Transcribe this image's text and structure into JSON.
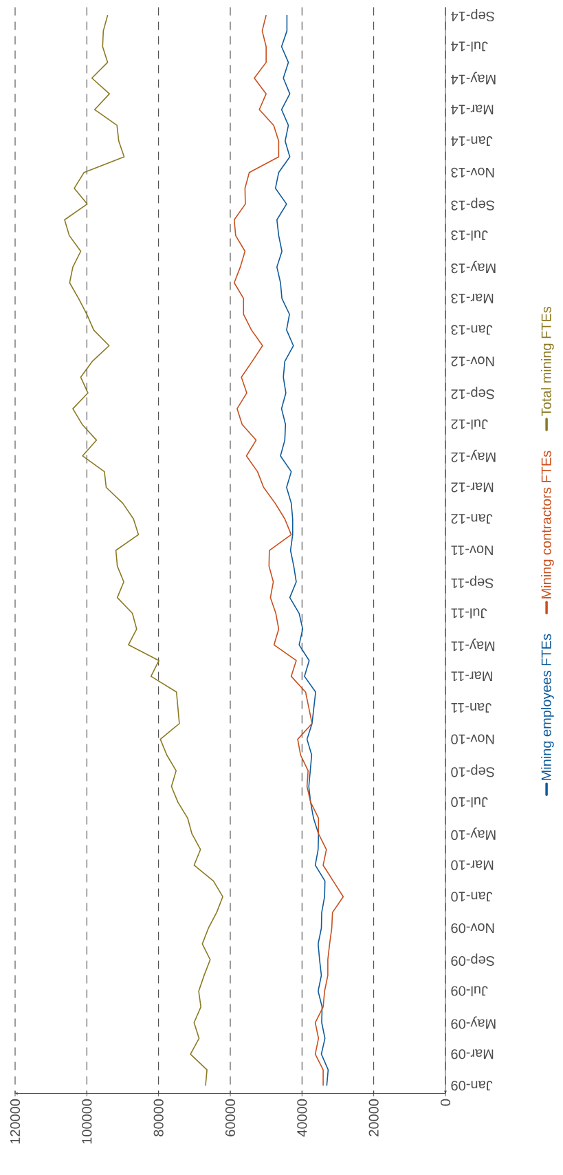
{
  "chart_data": {
    "type": "line",
    "orientation": "horizontal",
    "categories": [
      "Sep-14",
      null,
      "Jul-14",
      null,
      "May-14",
      null,
      "Mar-14",
      null,
      "Jan-14",
      null,
      "Nov-13",
      null,
      "Sep-13",
      null,
      "Jul-13",
      null,
      "May-13",
      null,
      "Mar-13",
      null,
      "Jan-13",
      null,
      "Nov-12",
      null,
      "Sep-12",
      null,
      "Jul-12",
      null,
      "May-12",
      null,
      "Mar-12",
      null,
      "Jan-12",
      null,
      "Nov-11",
      null,
      "Sep-11",
      null,
      "Jul-11",
      null,
      "May-11",
      null,
      "Mar-11",
      null,
      "Jan-11",
      null,
      "Nov-10",
      null,
      "Sep-10",
      null,
      "Jul-10",
      null,
      "May-10",
      null,
      "Mar-10",
      null,
      "Jan-10",
      null,
      "Nov-09",
      null,
      "Sep-09",
      null,
      "Jul-09",
      null,
      "May-09",
      null,
      "Mar-09",
      null,
      "Jan-09"
    ],
    "series": [
      {
        "name": "Mining employees FTEs",
        "color": "#0f5b9c",
        "values": [
          44200,
          44200,
          45700,
          43800,
          45200,
          43400,
          45700,
          43800,
          44700,
          43400,
          46500,
          47400,
          44300,
          47000,
          46500,
          45600,
          47000,
          46000,
          45600,
          43500,
          44300,
          42400,
          44800,
          45200,
          44500,
          45700,
          44600,
          44800,
          46000,
          43000,
          44300,
          43000,
          42600,
          42600,
          43200,
          42300,
          41600,
          43400,
          40800,
          39800,
          40800,
          38000,
          39300,
          36200,
          36700,
          37200,
          38600,
          37300,
          37700,
          38100,
          37600,
          36800,
          35400,
          35500,
          36300,
          33600,
          33700,
          34500,
          34600,
          35500,
          35100,
          34600,
          35500,
          34400,
          34500,
          33600,
          34600,
          32700,
          33100
        ]
      },
      {
        "name": "Mining contractors FTEs",
        "color": "#c8501e",
        "values": [
          50000,
          51100,
          50000,
          50000,
          53300,
          50000,
          51900,
          47900,
          46500,
          46500,
          54700,
          55900,
          55800,
          58900,
          58500,
          55900,
          57200,
          58900,
          56300,
          56300,
          54100,
          51000,
          53900,
          56900,
          55400,
          58100,
          56700,
          52800,
          55500,
          52400,
          50700,
          47500,
          44800,
          43000,
          49100,
          49200,
          48000,
          48800,
          47300,
          46500,
          47800,
          41600,
          43000,
          39000,
          38100,
          37200,
          41200,
          40400,
          38300,
          38600,
          37600,
          35400,
          35400,
          33200,
          34100,
          31300,
          28500,
          31500,
          31700,
          32300,
          32800,
          32800,
          33700,
          34100,
          36300,
          35400,
          36300,
          34100,
          34100
        ]
      },
      {
        "name": "Total mining FTEs",
        "color": "#8b7a22",
        "values": [
          94200,
          95400,
          95600,
          94200,
          98600,
          93700,
          97800,
          91600,
          91100,
          89600,
          100800,
          103500,
          99900,
          106200,
          104900,
          101700,
          103900,
          104800,
          102300,
          100000,
          98100,
          93800,
          98500,
          101700,
          99700,
          103900,
          101300,
          97300,
          101200,
          95100,
          94600,
          90000,
          87000,
          85600,
          91900,
          91500,
          89700,
          91500,
          87300,
          86100,
          88400,
          79900,
          82100,
          75000,
          74600,
          74200,
          79500,
          77700,
          75100,
          76400,
          74600,
          71900,
          70700,
          68300,
          70100,
          64700,
          62100,
          63800,
          66100,
          67800,
          65600,
          67300,
          68800,
          68200,
          70100,
          68700,
          71100,
          66500,
          66900
        ]
      }
    ],
    "xlim": [
      120000,
      0
    ],
    "xticks": [
      0,
      20000,
      40000,
      60000,
      80000,
      100000,
      120000
    ],
    "grid": "x",
    "legend": "right"
  }
}
